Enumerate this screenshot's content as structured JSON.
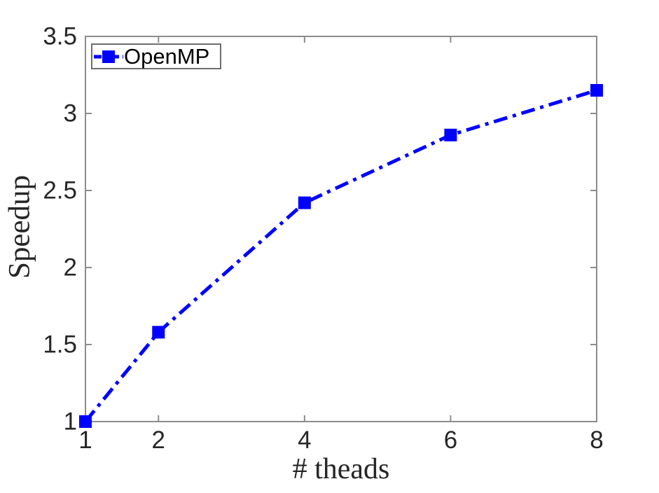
{
  "chart_data": {
    "type": "line",
    "title": "",
    "xlabel": "# theads",
    "ylabel": "Speedup",
    "x": [
      1,
      2,
      4,
      6,
      8
    ],
    "series": [
      {
        "name": "OpenMP",
        "values": [
          1.0,
          1.58,
          2.42,
          2.86,
          3.15
        ]
      }
    ],
    "xlim": [
      1,
      8
    ],
    "ylim": [
      1,
      3.5
    ],
    "xticks": [
      1,
      2,
      4,
      6,
      8
    ],
    "xtick_labels": [
      "1",
      "2",
      "4",
      "6",
      "8"
    ],
    "yticks": [
      1,
      1.5,
      2,
      2.5,
      3,
      3.5
    ],
    "ytick_labels": [
      "1",
      "1.5",
      "2",
      "2.5",
      "3",
      "3.5"
    ],
    "grid": false,
    "legend_position": "top-left",
    "line_style": "dash-dot",
    "marker": "square",
    "colors": {
      "line": "#0000ff",
      "axis": "#8c8c8c",
      "tick_text": "#262626",
      "legend_border": "#6e6e6e",
      "background": "#ffffff"
    }
  }
}
